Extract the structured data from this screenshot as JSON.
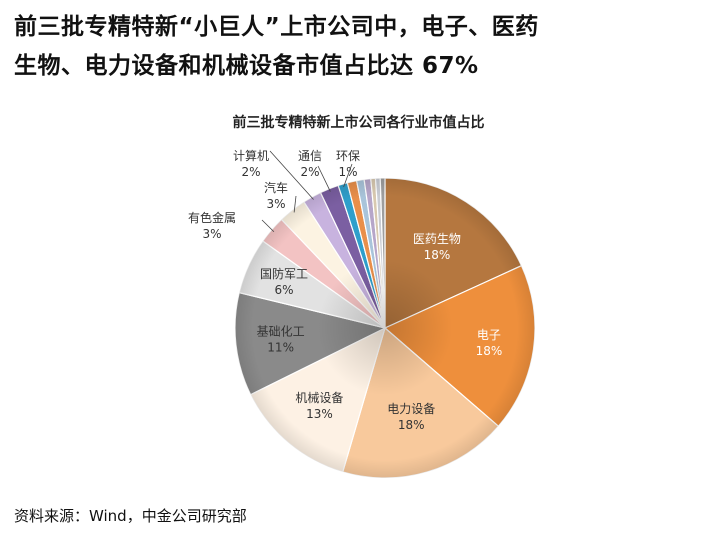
{
  "headline": {
    "line1": "前三批专精特新“小巨人”上市公司中，电子、医药",
    "line2": "生物、电力设备和机械设备市值占比达 67%"
  },
  "source": "资料来源：Wind，中金公司研究部",
  "chart_data": {
    "type": "pie",
    "title": "前三批专精特新上市公司各行业市值占比",
    "slices": [
      {
        "label": "医药生物",
        "value": 18,
        "display": "18%",
        "color": "#B5773F"
      },
      {
        "label": "电子",
        "value": 18,
        "display": "18%",
        "color": "#EE8F3C"
      },
      {
        "label": "电力设备",
        "value": 18,
        "display": "18%",
        "color": "#F8C99C"
      },
      {
        "label": "机械设备",
        "value": 13,
        "display": "13%",
        "color": "#FDF1E4"
      },
      {
        "label": "基础化工",
        "value": 11,
        "display": "11%",
        "color": "#8A8A8A"
      },
      {
        "label": "国防军工",
        "value": 6,
        "display": "6%",
        "color": "#E2E2E2"
      },
      {
        "label": "有色金属",
        "value": 3,
        "display": "3%",
        "color": "#F3C3C3"
      },
      {
        "label": "汽车",
        "value": 3,
        "display": "3%",
        "color": "#FCF3E2"
      },
      {
        "label": "计算机",
        "value": 2,
        "display": "2%",
        "color": "#C8B3DF"
      },
      {
        "label": "通信",
        "value": 2,
        "display": "2%",
        "color": "#7B5FA2"
      },
      {
        "label": "环保",
        "value": 1,
        "display": "1%",
        "color": "#2F9FCB"
      },
      {
        "label": "",
        "value": 1,
        "color": "#E98F4A"
      },
      {
        "label": "",
        "value": 0.8,
        "color": "#A9C4DA"
      },
      {
        "label": "",
        "value": 0.7,
        "color": "#B6A6C9"
      },
      {
        "label": "",
        "value": 0.5,
        "color": "#D8C9B0"
      },
      {
        "label": "",
        "value": 0.5,
        "color": "#C9CCD3"
      },
      {
        "label": "",
        "value": 0.5,
        "color": "#9E9E9E"
      }
    ]
  }
}
